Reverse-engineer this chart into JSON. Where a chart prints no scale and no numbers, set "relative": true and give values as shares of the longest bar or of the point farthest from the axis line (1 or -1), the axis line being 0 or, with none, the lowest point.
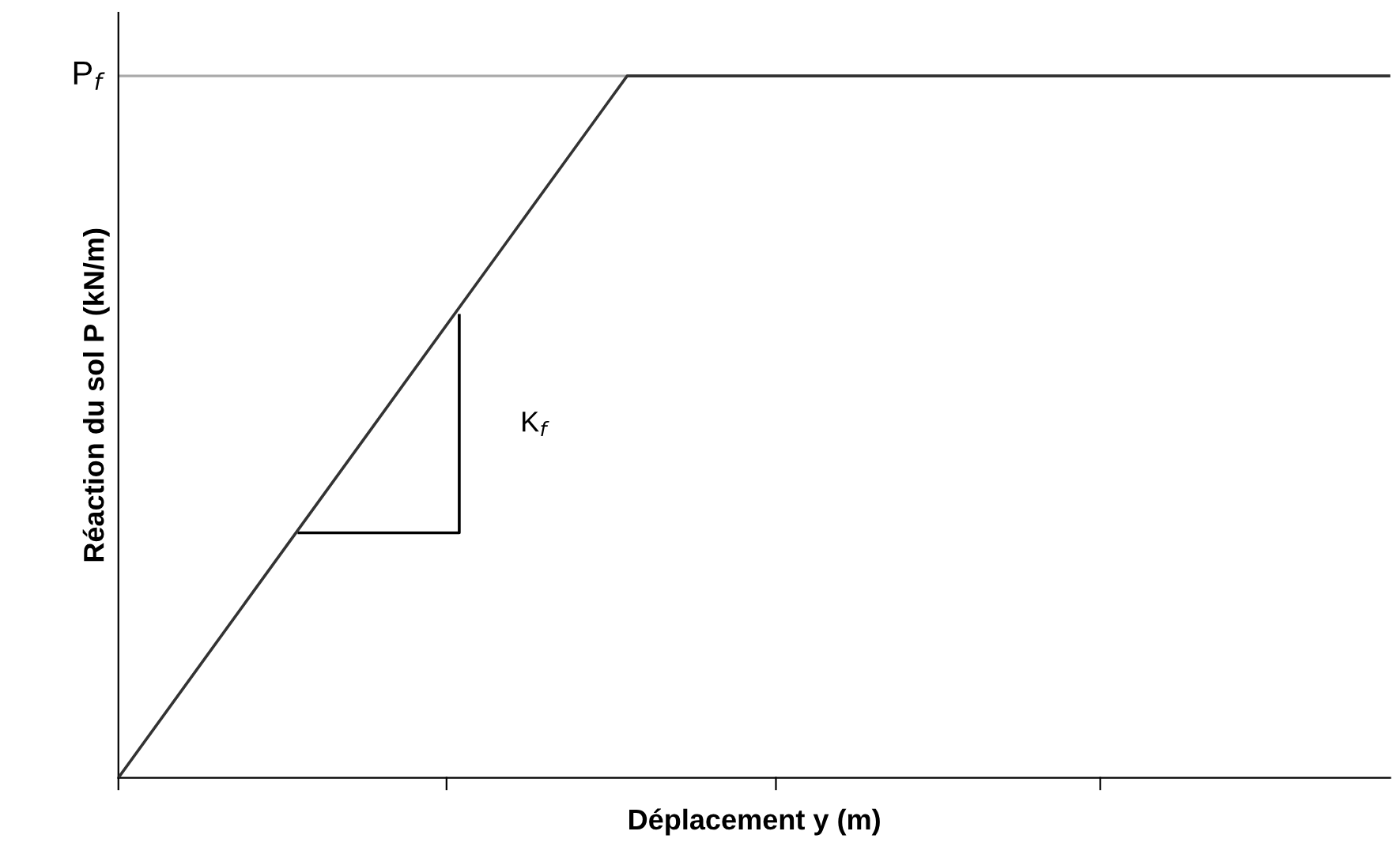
{
  "chart_data": {
    "type": "line",
    "relative": true,
    "xlabel": "Déplacement y (m)",
    "ylabel": "Réaction du sol P (kN/m)",
    "categories": [
      null,
      null,
      null,
      null,
      null,
      null,
      null,
      null,
      null,
      null,
      null
    ],
    "series": [
      {
        "color": "#333333",
        "values": [
          0,
          0.25,
          0.5,
          0.75,
          1,
          1,
          1,
          1,
          1,
          1,
          1
        ]
      }
    ],
    "ref_lines": [
      {
        "axis": "y",
        "value": 1,
        "label": "P$_{f}$",
        "color": "#aaaaaa"
      }
    ],
    "annotations": [
      "K$_{f}$"
    ],
    "legend": false,
    "marker": "none",
    "line_style": "solid"
  }
}
